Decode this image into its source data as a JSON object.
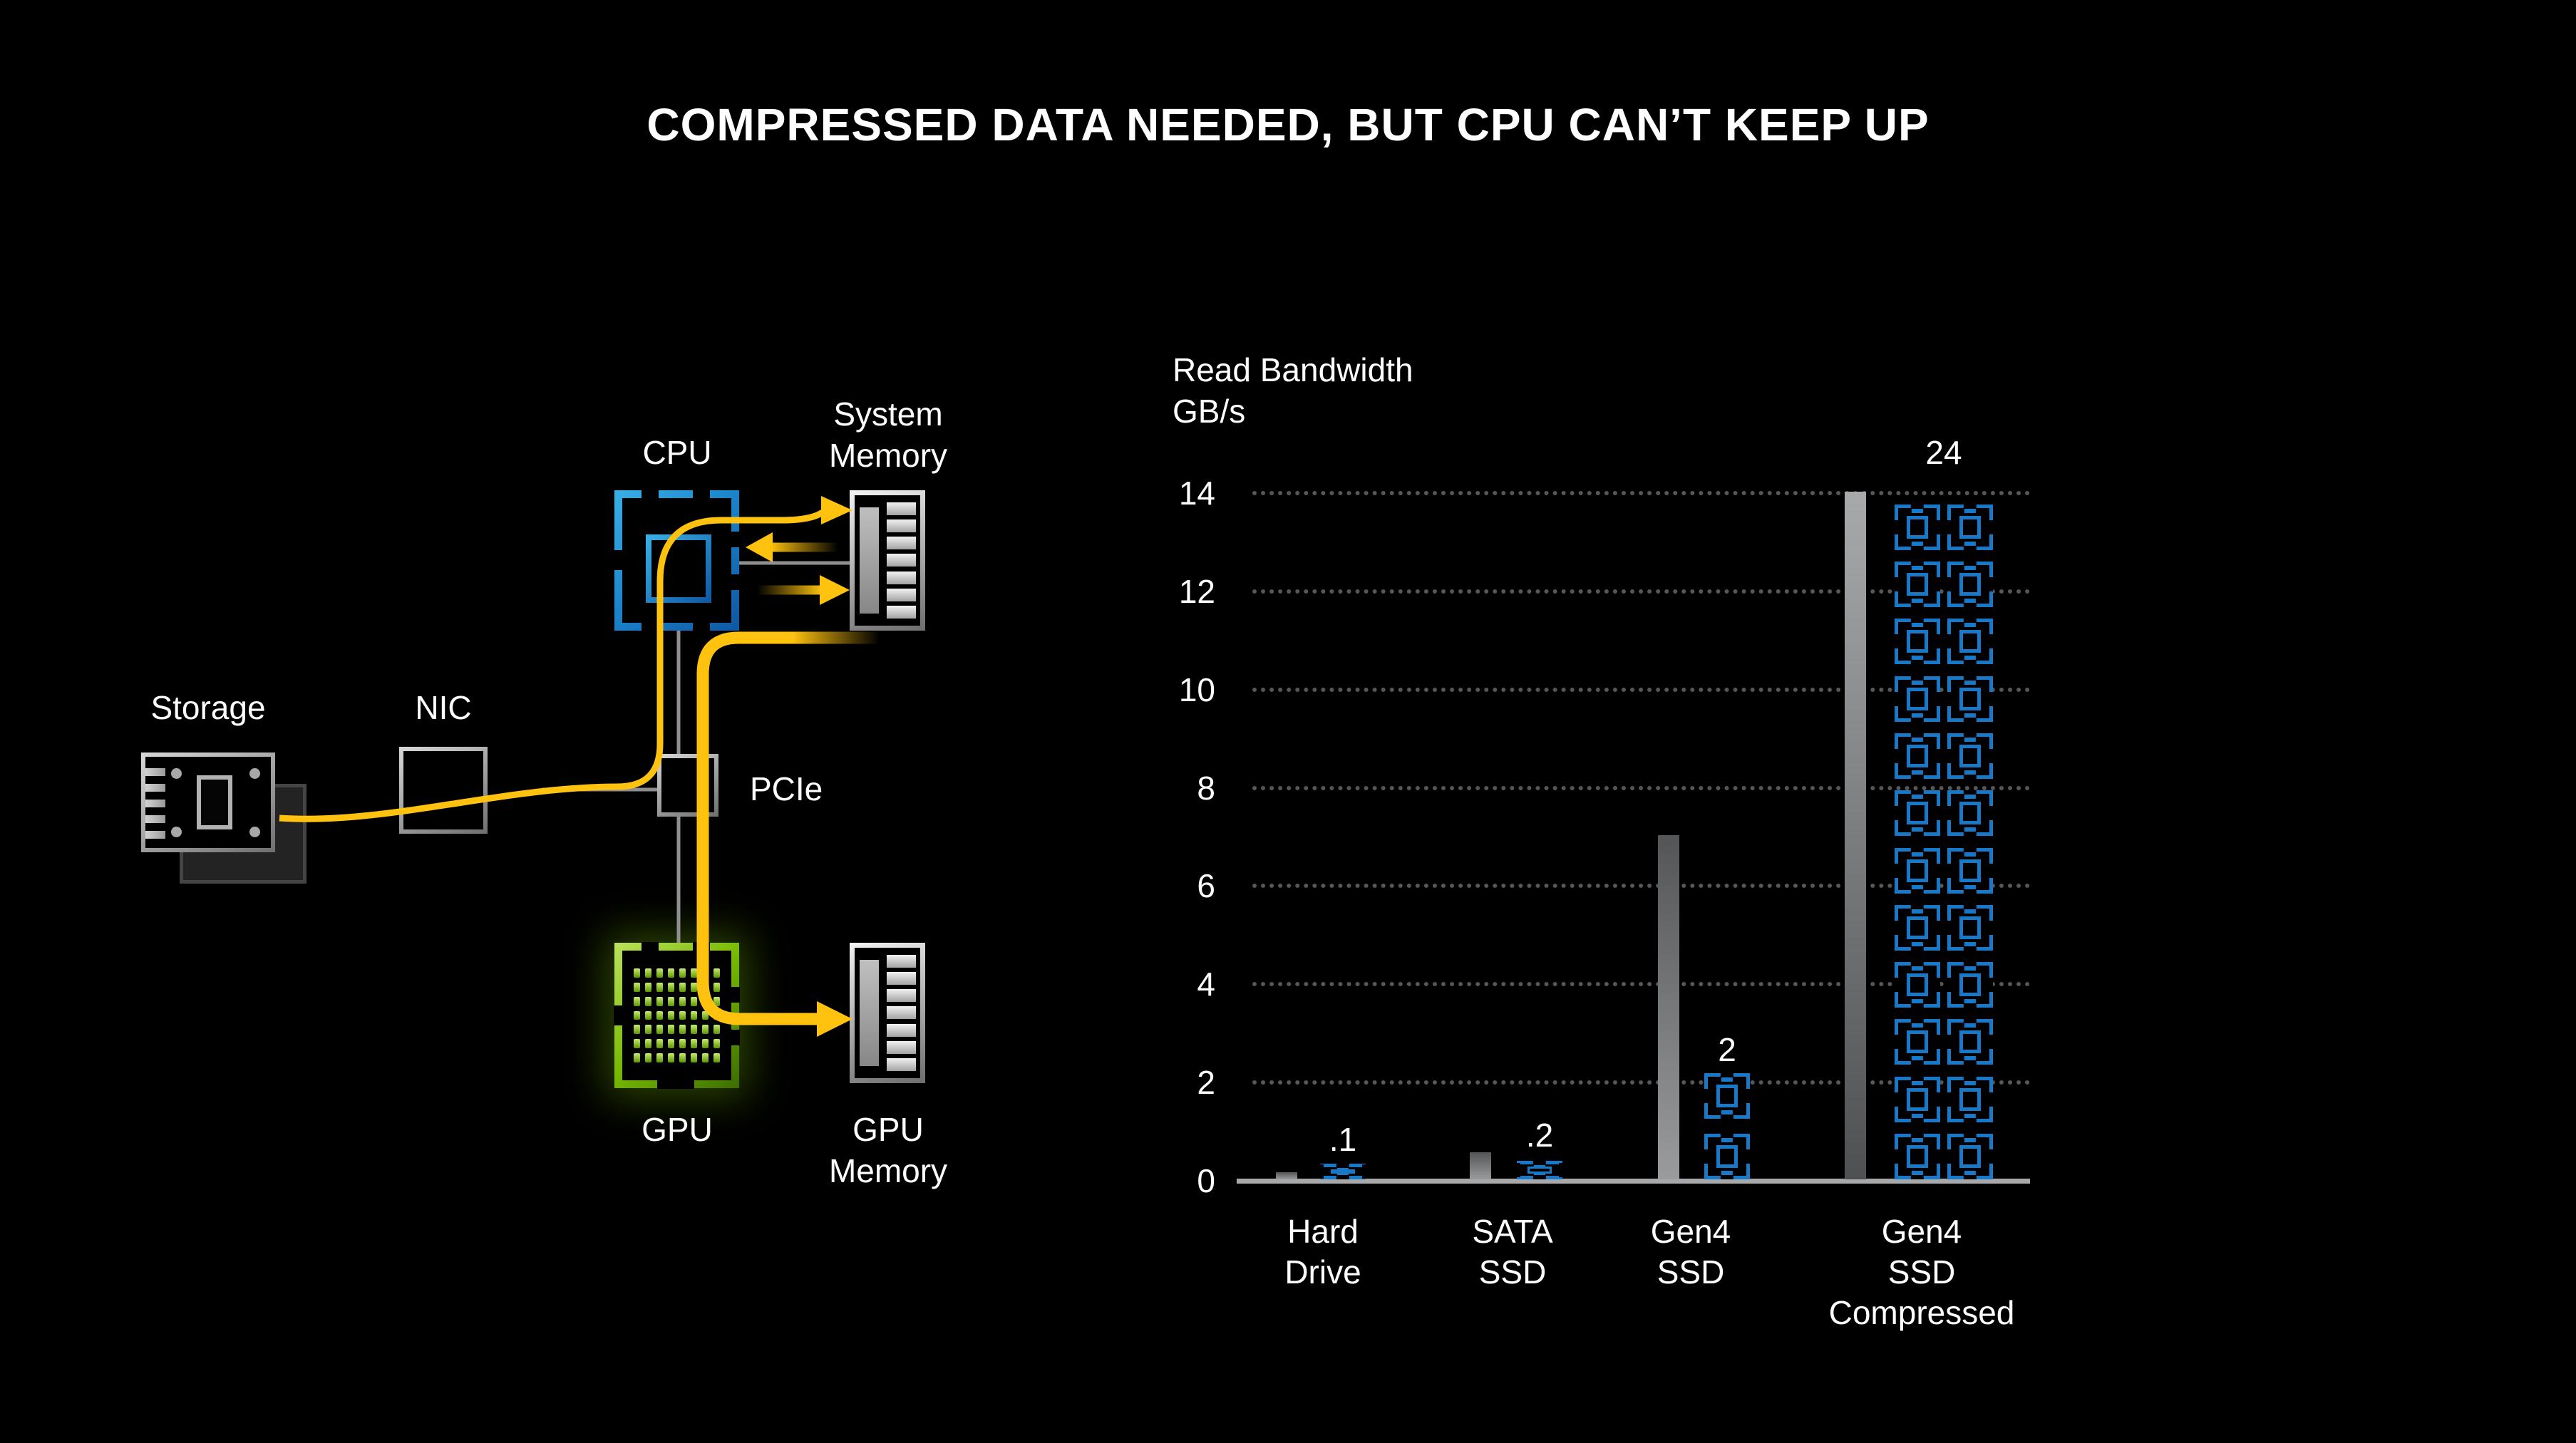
{
  "title": "COMPRESSED DATA NEEDED, BUT CPU CAN’T KEEP UP",
  "background": "#000000",
  "diagram": {
    "labels": {
      "storage": "Storage",
      "nic": "NIC",
      "cpu": "CPU",
      "pcie": "PCIe",
      "system_memory": [
        "System",
        "Memory"
      ],
      "gpu": "GPU",
      "gpu_memory": [
        "GPU",
        "Memory"
      ]
    },
    "colors": {
      "flow_yellow": "#FFC20E",
      "cpu_blue": "#1B86CC",
      "gpu_green": "#76B900",
      "connector_gray": "#8F8F8F",
      "memory_gray": "#BDBDBD"
    },
    "icons": [
      "storage-board-icon",
      "nic-box-icon",
      "cpu-socket-icon",
      "ram-module-icon",
      "pcie-box-icon",
      "gpu-socket-icon"
    ],
    "flows": [
      "storage to cpu via pcie (thin yellow line)",
      "cpu to system memory (yellow arrow)",
      "system memory to cpu (fading yellow arrow)",
      "cpu to system memory (fading yellow arrow)",
      "system memory through pcie to gpu to gpu memory (thick yellow arrow)"
    ]
  },
  "chart_data": {
    "type": "bar",
    "title": "Read Bandwidth",
    "unit": "GB/s",
    "ylim": [
      0,
      14
    ],
    "y_ticks": [
      0,
      2,
      4,
      6,
      8,
      10,
      12,
      14
    ],
    "grid": "dotted horizontal lines every 2 GB/s, solid baseline at 0",
    "legend_position": "none",
    "categories": [
      "Hard Drive",
      "SATA SSD",
      "Gen4 SSD",
      "Gen4 SSD Compressed"
    ],
    "category_lines": [
      [
        "Hard",
        "Drive"
      ],
      [
        "SATA",
        "SSD"
      ],
      [
        "Gen4",
        "SSD"
      ],
      [
        "Gen4",
        "SSD",
        "Compressed"
      ]
    ],
    "series": [
      {
        "name": "read-bandwidth-bar",
        "marker": "gray bar",
        "color_light": "#A8A9AB",
        "color_dark": "#545557",
        "values": [
          0.15,
          0.55,
          7,
          24
        ],
        "note": "Gen4 SSD Compressed bar drawn clipped at axis max 14"
      },
      {
        "name": "gpu-chip-equivalent",
        "marker": "blue chip icon stack",
        "color": "#1979C9",
        "values": [
          0.1,
          0.2,
          2,
          24
        ],
        "value_labels": [
          ".1",
          ".2",
          "2",
          "24"
        ],
        "chip_count": [
          1,
          1,
          2,
          24
        ],
        "chip_columns": [
          1,
          1,
          1,
          2
        ]
      }
    ]
  }
}
